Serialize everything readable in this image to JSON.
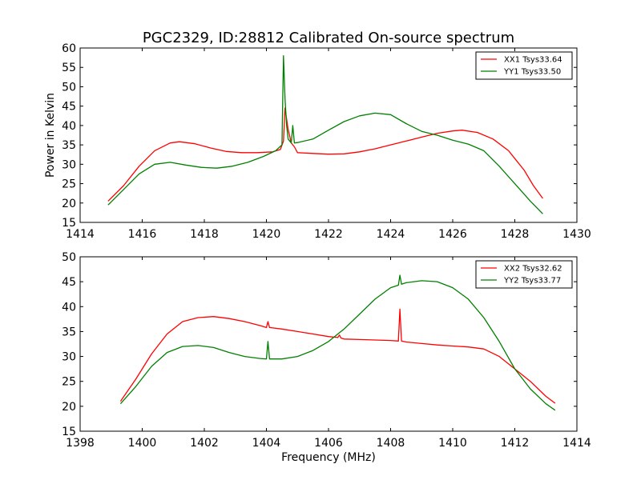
{
  "title": "PGC2329, ID:28812 Calibrated On-source spectrum",
  "colors": {
    "red": "#ff0000",
    "green": "#008000"
  },
  "chart_data": [
    {
      "type": "line",
      "title": "PGC2329, ID:28812 Calibrated On-source spectrum",
      "xlabel": "",
      "ylabel": "Power in Kelvin",
      "xlim": [
        1414,
        1430
      ],
      "ylim": [
        15,
        60
      ],
      "xticks": [
        "1414",
        "1416",
        "1418",
        "1420",
        "1422",
        "1424",
        "1426",
        "1428",
        "1430"
      ],
      "yticks": [
        "15",
        "20",
        "25",
        "30",
        "35",
        "40",
        "45",
        "50",
        "55",
        "60"
      ],
      "legend_position": "top-right",
      "grid": false,
      "series": [
        {
          "name": "XX1 Tsys33.64",
          "color": "#ff0000",
          "x": [
            1414.9,
            1415.4,
            1415.9,
            1416.4,
            1416.9,
            1417.2,
            1417.7,
            1418.2,
            1418.7,
            1419.2,
            1419.7,
            1420.2,
            1420.45,
            1420.55,
            1420.6,
            1420.7,
            1420.8,
            1420.9,
            1421.0,
            1421.5,
            1422.0,
            1422.5,
            1423.0,
            1423.5,
            1424.0,
            1424.5,
            1425.0,
            1425.5,
            1426.0,
            1426.3,
            1426.8,
            1427.3,
            1427.8,
            1428.3,
            1428.6,
            1428.9
          ],
          "y": [
            20.5,
            24.5,
            29.5,
            33.5,
            35.5,
            35.8,
            35.3,
            34.2,
            33.3,
            33.0,
            33.0,
            33.2,
            33.8,
            36.0,
            44.5,
            39.0,
            35.5,
            34.5,
            33.0,
            32.8,
            32.6,
            32.7,
            33.2,
            34.0,
            35.0,
            36.0,
            37.0,
            38.0,
            38.6,
            38.8,
            38.2,
            36.5,
            33.5,
            28.5,
            24.5,
            21.2
          ]
        },
        {
          "name": "YY1 Tsys33.50",
          "color": "#008000",
          "x": [
            1414.9,
            1415.4,
            1415.9,
            1416.4,
            1416.9,
            1417.4,
            1417.9,
            1418.4,
            1418.9,
            1419.4,
            1419.9,
            1420.3,
            1420.5,
            1420.55,
            1420.6,
            1420.65,
            1420.7,
            1420.8,
            1420.85,
            1420.9,
            1421.0,
            1421.5,
            1422.0,
            1422.5,
            1423.0,
            1423.5,
            1424.0,
            1424.5,
            1425.0,
            1425.5,
            1426.0,
            1426.5,
            1427.0,
            1427.5,
            1428.0,
            1428.5,
            1428.9
          ],
          "y": [
            19.5,
            23.5,
            27.5,
            30.0,
            30.5,
            29.8,
            29.2,
            29.0,
            29.5,
            30.5,
            32.0,
            33.5,
            35.0,
            58.0,
            47.0,
            40.0,
            36.5,
            35.5,
            40.0,
            35.5,
            35.6,
            36.5,
            38.8,
            41.0,
            42.5,
            43.2,
            42.8,
            40.5,
            38.5,
            37.5,
            36.2,
            35.2,
            33.5,
            29.5,
            25.0,
            20.5,
            17.2
          ]
        }
      ]
    },
    {
      "type": "line",
      "title": "",
      "xlabel": "Frequency (MHz)",
      "ylabel": "",
      "xlim": [
        1398,
        1414
      ],
      "ylim": [
        15,
        50
      ],
      "xticks": [
        "1398",
        "1400",
        "1402",
        "1404",
        "1406",
        "1408",
        "1410",
        "1412",
        "1414"
      ],
      "yticks": [
        "15",
        "20",
        "25",
        "30",
        "35",
        "40",
        "45",
        "50"
      ],
      "legend_position": "top-right",
      "grid": false,
      "series": [
        {
          "name": "XX2 Tsys32.62",
          "color": "#ff0000",
          "x": [
            1399.3,
            1399.8,
            1400.3,
            1400.8,
            1401.3,
            1401.8,
            1402.3,
            1402.8,
            1403.3,
            1403.8,
            1404.0,
            1404.05,
            1404.1,
            1404.5,
            1405.0,
            1405.5,
            1406.0,
            1406.3,
            1406.35,
            1406.4,
            1406.5,
            1407.0,
            1407.5,
            1408.0,
            1408.25,
            1408.3,
            1408.35,
            1408.5,
            1409.0,
            1409.5,
            1410.0,
            1410.5,
            1411.0,
            1411.5,
            1412.0,
            1412.5,
            1413.0,
            1413.3
          ],
          "y": [
            21.0,
            25.5,
            30.5,
            34.5,
            37.0,
            37.8,
            38.0,
            37.6,
            37.0,
            36.2,
            35.8,
            37.0,
            35.8,
            35.5,
            35.0,
            34.5,
            34.0,
            33.8,
            34.3,
            33.7,
            33.5,
            33.4,
            33.3,
            33.2,
            33.1,
            39.5,
            33.1,
            32.9,
            32.6,
            32.3,
            32.1,
            31.9,
            31.5,
            30.0,
            27.5,
            25.0,
            22.0,
            20.6
          ]
        },
        {
          "name": "YY2 Tsys33.77",
          "color": "#008000",
          "x": [
            1399.3,
            1399.8,
            1400.3,
            1400.8,
            1401.3,
            1401.8,
            1402.3,
            1402.8,
            1403.3,
            1403.8,
            1404.0,
            1404.05,
            1404.1,
            1404.5,
            1405.0,
            1405.5,
            1406.0,
            1406.5,
            1407.0,
            1407.5,
            1408.0,
            1408.25,
            1408.3,
            1408.35,
            1408.5,
            1409.0,
            1409.5,
            1410.0,
            1410.5,
            1411.0,
            1411.5,
            1412.0,
            1412.5,
            1413.0,
            1413.3
          ],
          "y": [
            20.5,
            24.0,
            28.0,
            30.8,
            32.0,
            32.2,
            31.8,
            30.8,
            30.0,
            29.6,
            29.5,
            33.0,
            29.5,
            29.5,
            30.0,
            31.2,
            33.0,
            35.5,
            38.5,
            41.5,
            43.8,
            44.3,
            46.3,
            44.5,
            44.8,
            45.2,
            45.0,
            43.8,
            41.5,
            37.8,
            33.0,
            27.5,
            23.5,
            20.5,
            19.2
          ]
        }
      ]
    }
  ]
}
